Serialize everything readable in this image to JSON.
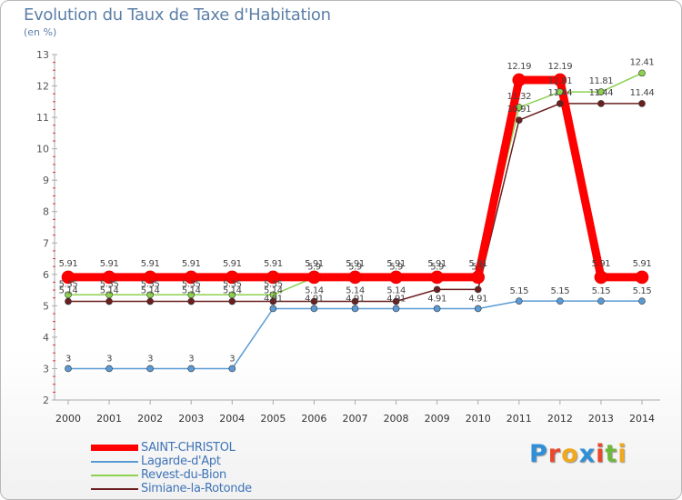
{
  "title": "Evolution du Taux de Taxe d'Habitation",
  "subtitle": "(en %)",
  "logo": {
    "letters": [
      "P",
      "r",
      "o",
      "x",
      "i",
      "t",
      "i"
    ],
    "colors": [
      "#2f8fd8",
      "#e8492c",
      "#f0a81c",
      "#2f8fd8",
      "#e8492c",
      "#70b83c",
      "#f0a81c"
    ]
  },
  "chart_data": {
    "type": "line",
    "title": "Evolution du Taux de Taxe d'Habitation",
    "ylabel": "(en %)",
    "xlabel": "",
    "ylim": [
      2,
      13
    ],
    "yticks": [
      "2",
      "3",
      "4",
      "5",
      "6",
      "7",
      "8",
      "9",
      "10",
      "11",
      "12",
      "13"
    ],
    "categories": [
      "2000",
      "2001",
      "2002",
      "2003",
      "2004",
      "2005",
      "2006",
      "2007",
      "2008",
      "2009",
      "2010",
      "2011",
      "2012",
      "2013",
      "2014"
    ],
    "series": [
      {
        "name": "Lagarde-d'Apt",
        "color": "#5b9bd5",
        "values": [
          3,
          3,
          3,
          3,
          3,
          4.91,
          4.91,
          4.91,
          4.91,
          4.91,
          4.91,
          5.15,
          5.15,
          5.15,
          5.15
        ],
        "labels": [
          "3",
          "3",
          "3",
          "3",
          "3",
          "4.91",
          "4.91",
          "4.91",
          "4.91",
          "4.91",
          "4.91",
          "5.15",
          "5.15",
          "5.15",
          "5.15"
        ]
      },
      {
        "name": "Simiane-la-Rotonde",
        "color": "#6b1f1f",
        "values": [
          5.14,
          5.14,
          5.14,
          5.14,
          5.14,
          5.14,
          5.14,
          5.14,
          5.14,
          5.52,
          5.52,
          10.91,
          11.44,
          11.44,
          11.44
        ],
        "labels": [
          "5.14",
          "5.14",
          "5.14",
          "5.14",
          "5.14",
          "5.14",
          "5.14",
          "5.14",
          "5.14",
          "",
          "",
          "10.91",
          "11.44",
          "11.44",
          "11.44"
        ]
      },
      {
        "name": "Revest-du-Bion",
        "color": "#8cd150",
        "values": [
          5.35,
          5.35,
          5.35,
          5.35,
          5.35,
          5.35,
          5.9,
          5.9,
          5.9,
          5.9,
          5.9,
          11.32,
          11.81,
          11.81,
          12.41
        ],
        "labels": [
          "5.35",
          "5.35",
          "5.35",
          "5.35",
          "5.35",
          "5.35",
          "5.9",
          "5.9",
          "5.9",
          "5.9",
          "5.9",
          "11.32",
          "11.81",
          "11.81",
          "12.41"
        ]
      },
      {
        "name": "SAINT-CHRISTOL",
        "color": "#ff0000",
        "values": [
          5.91,
          5.91,
          5.91,
          5.91,
          5.91,
          5.91,
          5.91,
          5.91,
          5.91,
          5.91,
          5.91,
          12.19,
          12.19,
          5.91,
          5.91
        ],
        "labels": [
          "5.91",
          "5.91",
          "5.91",
          "5.91",
          "5.91",
          "5.91",
          "5.91",
          "5.91",
          "5.91",
          "5.91",
          "5.91",
          "12.19",
          "12.19",
          "5.91",
          "5.91"
        ]
      }
    ],
    "legend": [
      "SAINT-CHRISTOL",
      "Lagarde-d'Apt",
      "Revest-du-Bion",
      "Simiane-la-Rotonde"
    ],
    "legend_placement": "bottom-left",
    "grid": false
  }
}
